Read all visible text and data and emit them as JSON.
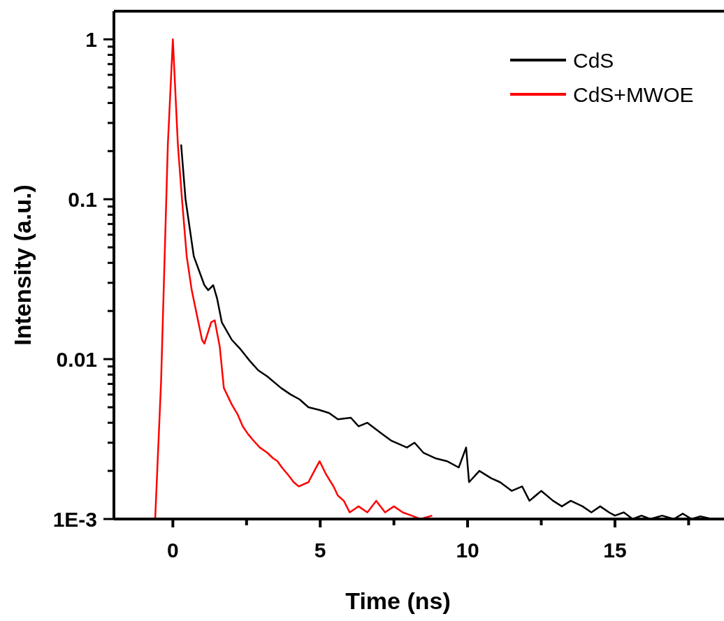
{
  "chart_data": {
    "type": "line",
    "xlabel": "Time (ns)",
    "ylabel": "Intensity (a.u.)",
    "log": "y",
    "legend": "top right",
    "grid": false,
    "line_style": "solid",
    "marker": "none",
    "xlim": [
      -2,
      18.7
    ],
    "ylim": [
      0.001,
      1.5
    ],
    "xticks": [
      0,
      {
        "value": 2.5,
        "label": null
      },
      5,
      {
        "value": 7.5,
        "label": null
      },
      10,
      {
        "value": 12.5,
        "label": null
      },
      15,
      {
        "value": 17.5,
        "label": null
      }
    ],
    "yticks": [
      {
        "value": 0.001,
        "label": "1E-3"
      },
      {
        "value": 0.002,
        "label": null
      },
      {
        "value": 0.003,
        "label": null
      },
      {
        "value": 0.004,
        "label": null
      },
      {
        "value": 0.005,
        "label": null
      },
      {
        "value": 0.006,
        "label": null
      },
      {
        "value": 0.007,
        "label": null
      },
      {
        "value": 0.008,
        "label": null
      },
      {
        "value": 0.009,
        "label": null
      },
      0.01,
      {
        "value": 0.02,
        "label": null
      },
      {
        "value": 0.03,
        "label": null
      },
      {
        "value": 0.04,
        "label": null
      },
      {
        "value": 0.05,
        "label": null
      },
      {
        "value": 0.06,
        "label": null
      },
      {
        "value": 0.07,
        "label": null
      },
      {
        "value": 0.08,
        "label": null
      },
      {
        "value": 0.09,
        "label": null
      },
      0.1,
      {
        "value": 0.2,
        "label": null
      },
      {
        "value": 0.3,
        "label": null
      },
      {
        "value": 0.4,
        "label": null
      },
      {
        "value": 0.5,
        "label": null
      },
      {
        "value": 0.6,
        "label": null
      },
      {
        "value": 0.7,
        "label": null
      },
      {
        "value": 0.8,
        "label": null
      },
      {
        "value": 0.9,
        "label": null
      },
      1
    ],
    "series": [
      {
        "name": "CdS",
        "color": "#000000",
        "x": [
          0.28,
          0.43,
          0.71,
          1.07,
          1.2,
          1.37,
          1.5,
          1.66,
          2.0,
          2.3,
          2.6,
          2.9,
          3.2,
          3.67,
          4.0,
          4.3,
          4.6,
          4.98,
          5.3,
          5.6,
          6.04,
          6.3,
          6.6,
          7.1,
          7.4,
          7.94,
          8.2,
          8.5,
          8.9,
          9.3,
          9.7,
          9.95,
          10.05,
          10.4,
          10.8,
          11.1,
          11.5,
          11.85,
          12.1,
          12.5,
          12.9,
          13.2,
          13.5,
          13.9,
          14.2,
          14.5,
          14.8,
          15.0,
          15.3,
          15.6,
          15.9,
          16.2,
          16.6,
          17.0,
          17.3,
          17.6,
          17.9,
          18.3
        ],
        "values": [
          0.22,
          0.1,
          0.044,
          0.029,
          0.027,
          0.029,
          0.024,
          0.017,
          0.0132,
          0.0115,
          0.0098,
          0.0085,
          0.0078,
          0.0066,
          0.006,
          0.0056,
          0.005,
          0.0048,
          0.0046,
          0.0042,
          0.0043,
          0.0038,
          0.004,
          0.0034,
          0.0031,
          0.0028,
          0.003,
          0.0026,
          0.0024,
          0.0023,
          0.0021,
          0.0028,
          0.0017,
          0.002,
          0.0018,
          0.0017,
          0.0015,
          0.0016,
          0.0013,
          0.0015,
          0.0013,
          0.0012,
          0.0013,
          0.0012,
          0.0011,
          0.0012,
          0.0011,
          0.00105,
          0.0011,
          0.001,
          0.00105,
          0.001,
          0.00105,
          0.001,
          0.00108,
          0.001,
          0.00104,
          0.001
        ]
      },
      {
        "name": "CdS+MWOE",
        "color": "#ff0000",
        "x": [
          -0.6,
          -0.4,
          -0.17,
          0,
          0.17,
          0.31,
          0.47,
          0.64,
          0.99,
          1.07,
          1.3,
          1.42,
          1.59,
          1.73,
          2.0,
          2.2,
          2.37,
          2.55,
          2.73,
          2.95,
          3.2,
          3.4,
          3.55,
          3.7,
          3.9,
          4.1,
          4.27,
          4.6,
          4.8,
          4.98,
          5.2,
          5.45,
          5.6,
          5.8,
          6.0,
          6.3,
          6.6,
          6.9,
          7.2,
          7.5,
          7.8,
          8.1,
          8.4,
          8.8
        ],
        "values": [
          0.001,
          0.0072,
          0.22,
          1,
          0.22,
          0.1,
          0.044,
          0.027,
          0.0132,
          0.0125,
          0.017,
          0.0175,
          0.012,
          0.0066,
          0.0052,
          0.0045,
          0.0038,
          0.0034,
          0.0031,
          0.0028,
          0.0026,
          0.0024,
          0.0023,
          0.0021,
          0.0019,
          0.0017,
          0.0016,
          0.0017,
          0.002,
          0.0023,
          0.0019,
          0.0016,
          0.0014,
          0.0013,
          0.0011,
          0.0012,
          0.0011,
          0.0013,
          0.0011,
          0.0012,
          0.0011,
          0.00105,
          0.001,
          0.00105
        ]
      }
    ]
  }
}
